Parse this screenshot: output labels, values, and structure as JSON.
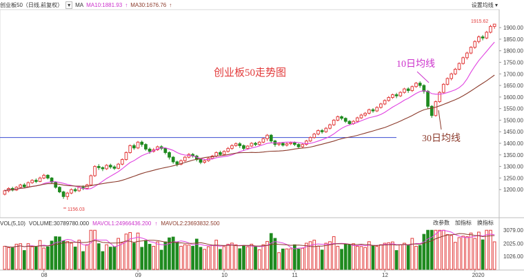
{
  "header": {
    "title": "创业板50（日线,前复权）",
    "ma_label": "MA",
    "ma10": "MA10:1881.93",
    "ma30": "MA30:1676.76",
    "settings": "设置均线"
  },
  "chart": {
    "annotation_title": "创业板50走势图",
    "annotation_ma10": "10日均线",
    "annotation_ma30": "30日均线",
    "high_label": "1915.62",
    "low_label": "1156.03",
    "colors": {
      "up": "#e23a3a",
      "down": "#1f8a1f",
      "ma10": "#e040e0",
      "ma30": "#8b3a2b",
      "hline": "#3a4bd0"
    }
  },
  "volume": {
    "label": "VOL(5,10)",
    "volume": "VOLUME:30789780.000",
    "mavol1": "MAVOL1:24966436.200",
    "mavol2": "MAVOL2:23693832.500",
    "buttons": [
      "改参数",
      "加指标",
      "换指标"
    ]
  },
  "chart_data": {
    "type": "candlestick",
    "y_ticks": [
      "1900.00",
      "1850.00",
      "1800.00",
      "1750.00",
      "1700.00",
      "1650.00",
      "1600.00",
      "1550.00",
      "1500.00",
      "1450.00",
      "1400.00",
      "1350.00",
      "1300.00",
      "1250.00",
      "1200.00"
    ],
    "y_range": [
      1150,
      1930
    ],
    "horizontal_line_value": 1425,
    "vol_ticks": [
      "3079.00",
      "2025.00",
      "1026.00"
    ],
    "vol_range": [
      0,
      3200
    ],
    "x_labels": [
      {
        "label": "08",
        "index": 10
      },
      {
        "label": "09",
        "index": 34
      },
      {
        "label": "10",
        "index": 56
      },
      {
        "label": "11",
        "index": 74
      },
      {
        "label": "12",
        "index": 97
      },
      {
        "label": "2020",
        "index": 120
      },
      {
        "label": "02",
        "index": 134
      }
    ],
    "candles": [
      [
        1180,
        1195,
        1175,
        1200
      ],
      [
        1195,
        1205,
        1188,
        1210
      ],
      [
        1205,
        1198,
        1192,
        1212
      ],
      [
        1198,
        1210,
        1194,
        1215
      ],
      [
        1210,
        1220,
        1205,
        1225
      ],
      [
        1220,
        1212,
        1208,
        1228
      ],
      [
        1212,
        1230,
        1210,
        1235
      ],
      [
        1230,
        1240,
        1225,
        1245
      ],
      [
        1240,
        1235,
        1228,
        1248
      ],
      [
        1235,
        1250,
        1232,
        1256
      ],
      [
        1250,
        1262,
        1245,
        1268
      ],
      [
        1262,
        1250,
        1244,
        1266
      ],
      [
        1250,
        1232,
        1226,
        1254
      ],
      [
        1232,
        1210,
        1204,
        1236
      ],
      [
        1210,
        1190,
        1185,
        1214
      ],
      [
        1190,
        1170,
        1160,
        1195
      ],
      [
        1170,
        1185,
        1156,
        1190
      ],
      [
        1185,
        1200,
        1180,
        1205
      ],
      [
        1200,
        1195,
        1188,
        1208
      ],
      [
        1195,
        1210,
        1190,
        1215
      ],
      [
        1210,
        1205,
        1198,
        1218
      ],
      [
        1205,
        1220,
        1200,
        1225
      ],
      [
        1220,
        1260,
        1218,
        1265
      ],
      [
        1260,
        1300,
        1255,
        1305
      ],
      [
        1300,
        1295,
        1285,
        1310
      ],
      [
        1295,
        1290,
        1280,
        1300
      ],
      [
        1290,
        1305,
        1285,
        1310
      ],
      [
        1305,
        1298,
        1290,
        1312
      ],
      [
        1298,
        1292,
        1285,
        1305
      ],
      [
        1292,
        1310,
        1288,
        1315
      ],
      [
        1310,
        1330,
        1305,
        1335
      ],
      [
        1330,
        1360,
        1325,
        1365
      ],
      [
        1360,
        1390,
        1355,
        1395
      ],
      [
        1390,
        1380,
        1372,
        1398
      ],
      [
        1380,
        1405,
        1375,
        1410
      ],
      [
        1405,
        1395,
        1385,
        1412
      ],
      [
        1395,
        1375,
        1368,
        1400
      ],
      [
        1375,
        1365,
        1355,
        1382
      ],
      [
        1365,
        1372,
        1360,
        1380
      ],
      [
        1372,
        1385,
        1368,
        1390
      ],
      [
        1385,
        1378,
        1370,
        1392
      ],
      [
        1378,
        1360,
        1352,
        1382
      ],
      [
        1360,
        1340,
        1330,
        1365
      ],
      [
        1340,
        1320,
        1312,
        1345
      ],
      [
        1320,
        1310,
        1300,
        1325
      ],
      [
        1310,
        1325,
        1305,
        1330
      ],
      [
        1325,
        1340,
        1320,
        1345
      ],
      [
        1340,
        1352,
        1335,
        1358
      ],
      [
        1352,
        1345,
        1338,
        1358
      ],
      [
        1345,
        1330,
        1322,
        1350
      ],
      [
        1330,
        1318,
        1310,
        1335
      ],
      [
        1318,
        1325,
        1312,
        1332
      ],
      [
        1325,
        1335,
        1320,
        1340
      ],
      [
        1335,
        1345,
        1330,
        1350
      ],
      [
        1345,
        1360,
        1340,
        1365
      ],
      [
        1360,
        1352,
        1345,
        1368
      ],
      [
        1352,
        1365,
        1348,
        1370
      ],
      [
        1365,
        1378,
        1360,
        1384
      ],
      [
        1378,
        1390,
        1372,
        1396
      ],
      [
        1390,
        1398,
        1385,
        1404
      ],
      [
        1398,
        1390,
        1380,
        1405
      ],
      [
        1390,
        1378,
        1370,
        1395
      ],
      [
        1378,
        1388,
        1372,
        1392
      ],
      [
        1388,
        1400,
        1384,
        1405
      ],
      [
        1400,
        1395,
        1388,
        1406
      ],
      [
        1395,
        1405,
        1390,
        1410
      ],
      [
        1405,
        1420,
        1400,
        1425
      ],
      [
        1420,
        1435,
        1410,
        1440
      ],
      [
        1435,
        1410,
        1402,
        1440
      ],
      [
        1410,
        1395,
        1385,
        1415
      ],
      [
        1395,
        1400,
        1388,
        1405
      ],
      [
        1400,
        1392,
        1386,
        1406
      ],
      [
        1392,
        1398,
        1386,
        1404
      ],
      [
        1398,
        1402,
        1392,
        1408
      ],
      [
        1402,
        1395,
        1388,
        1408
      ],
      [
        1395,
        1385,
        1378,
        1400
      ],
      [
        1385,
        1395,
        1380,
        1400
      ],
      [
        1395,
        1410,
        1390,
        1415
      ],
      [
        1410,
        1425,
        1405,
        1430
      ],
      [
        1425,
        1440,
        1420,
        1445
      ],
      [
        1440,
        1455,
        1435,
        1460
      ],
      [
        1455,
        1450,
        1442,
        1462
      ],
      [
        1450,
        1465,
        1445,
        1470
      ],
      [
        1465,
        1480,
        1460,
        1485
      ],
      [
        1480,
        1500,
        1475,
        1505
      ],
      [
        1500,
        1515,
        1495,
        1520
      ],
      [
        1515,
        1508,
        1500,
        1520
      ],
      [
        1508,
        1495,
        1488,
        1512
      ],
      [
        1495,
        1485,
        1478,
        1500
      ],
      [
        1485,
        1495,
        1480,
        1500
      ],
      [
        1495,
        1510,
        1490,
        1515
      ],
      [
        1510,
        1522,
        1505,
        1528
      ],
      [
        1522,
        1530,
        1515,
        1535
      ],
      [
        1530,
        1545,
        1525,
        1550
      ],
      [
        1545,
        1540,
        1532,
        1552
      ],
      [
        1540,
        1555,
        1535,
        1560
      ],
      [
        1555,
        1570,
        1550,
        1575
      ],
      [
        1570,
        1585,
        1565,
        1590
      ],
      [
        1585,
        1598,
        1580,
        1604
      ],
      [
        1598,
        1610,
        1592,
        1615
      ],
      [
        1610,
        1605,
        1595,
        1618
      ],
      [
        1605,
        1620,
        1600,
        1625
      ],
      [
        1620,
        1635,
        1615,
        1640
      ],
      [
        1635,
        1628,
        1618,
        1642
      ],
      [
        1628,
        1645,
        1622,
        1650
      ],
      [
        1645,
        1660,
        1640,
        1665
      ],
      [
        1660,
        1650,
        1640,
        1668
      ],
      [
        1650,
        1625,
        1615,
        1655
      ],
      [
        1625,
        1560,
        1550,
        1630
      ],
      [
        1560,
        1520,
        1510,
        1565
      ],
      [
        1520,
        1580,
        1515,
        1585
      ],
      [
        1580,
        1620,
        1575,
        1625
      ],
      [
        1620,
        1655,
        1615,
        1660
      ],
      [
        1655,
        1680,
        1650,
        1685
      ],
      [
        1680,
        1700,
        1672,
        1705
      ],
      [
        1700,
        1720,
        1695,
        1726
      ],
      [
        1720,
        1745,
        1715,
        1750
      ],
      [
        1745,
        1770,
        1740,
        1775
      ],
      [
        1770,
        1790,
        1762,
        1796
      ],
      [
        1790,
        1815,
        1785,
        1820
      ],
      [
        1815,
        1840,
        1808,
        1845
      ],
      [
        1840,
        1860,
        1832,
        1866
      ],
      [
        1860,
        1855,
        1845,
        1868
      ],
      [
        1855,
        1880,
        1850,
        1886
      ],
      [
        1880,
        1905,
        1875,
        1912
      ],
      [
        1905,
        1915,
        1895,
        1916
      ]
    ]
  }
}
